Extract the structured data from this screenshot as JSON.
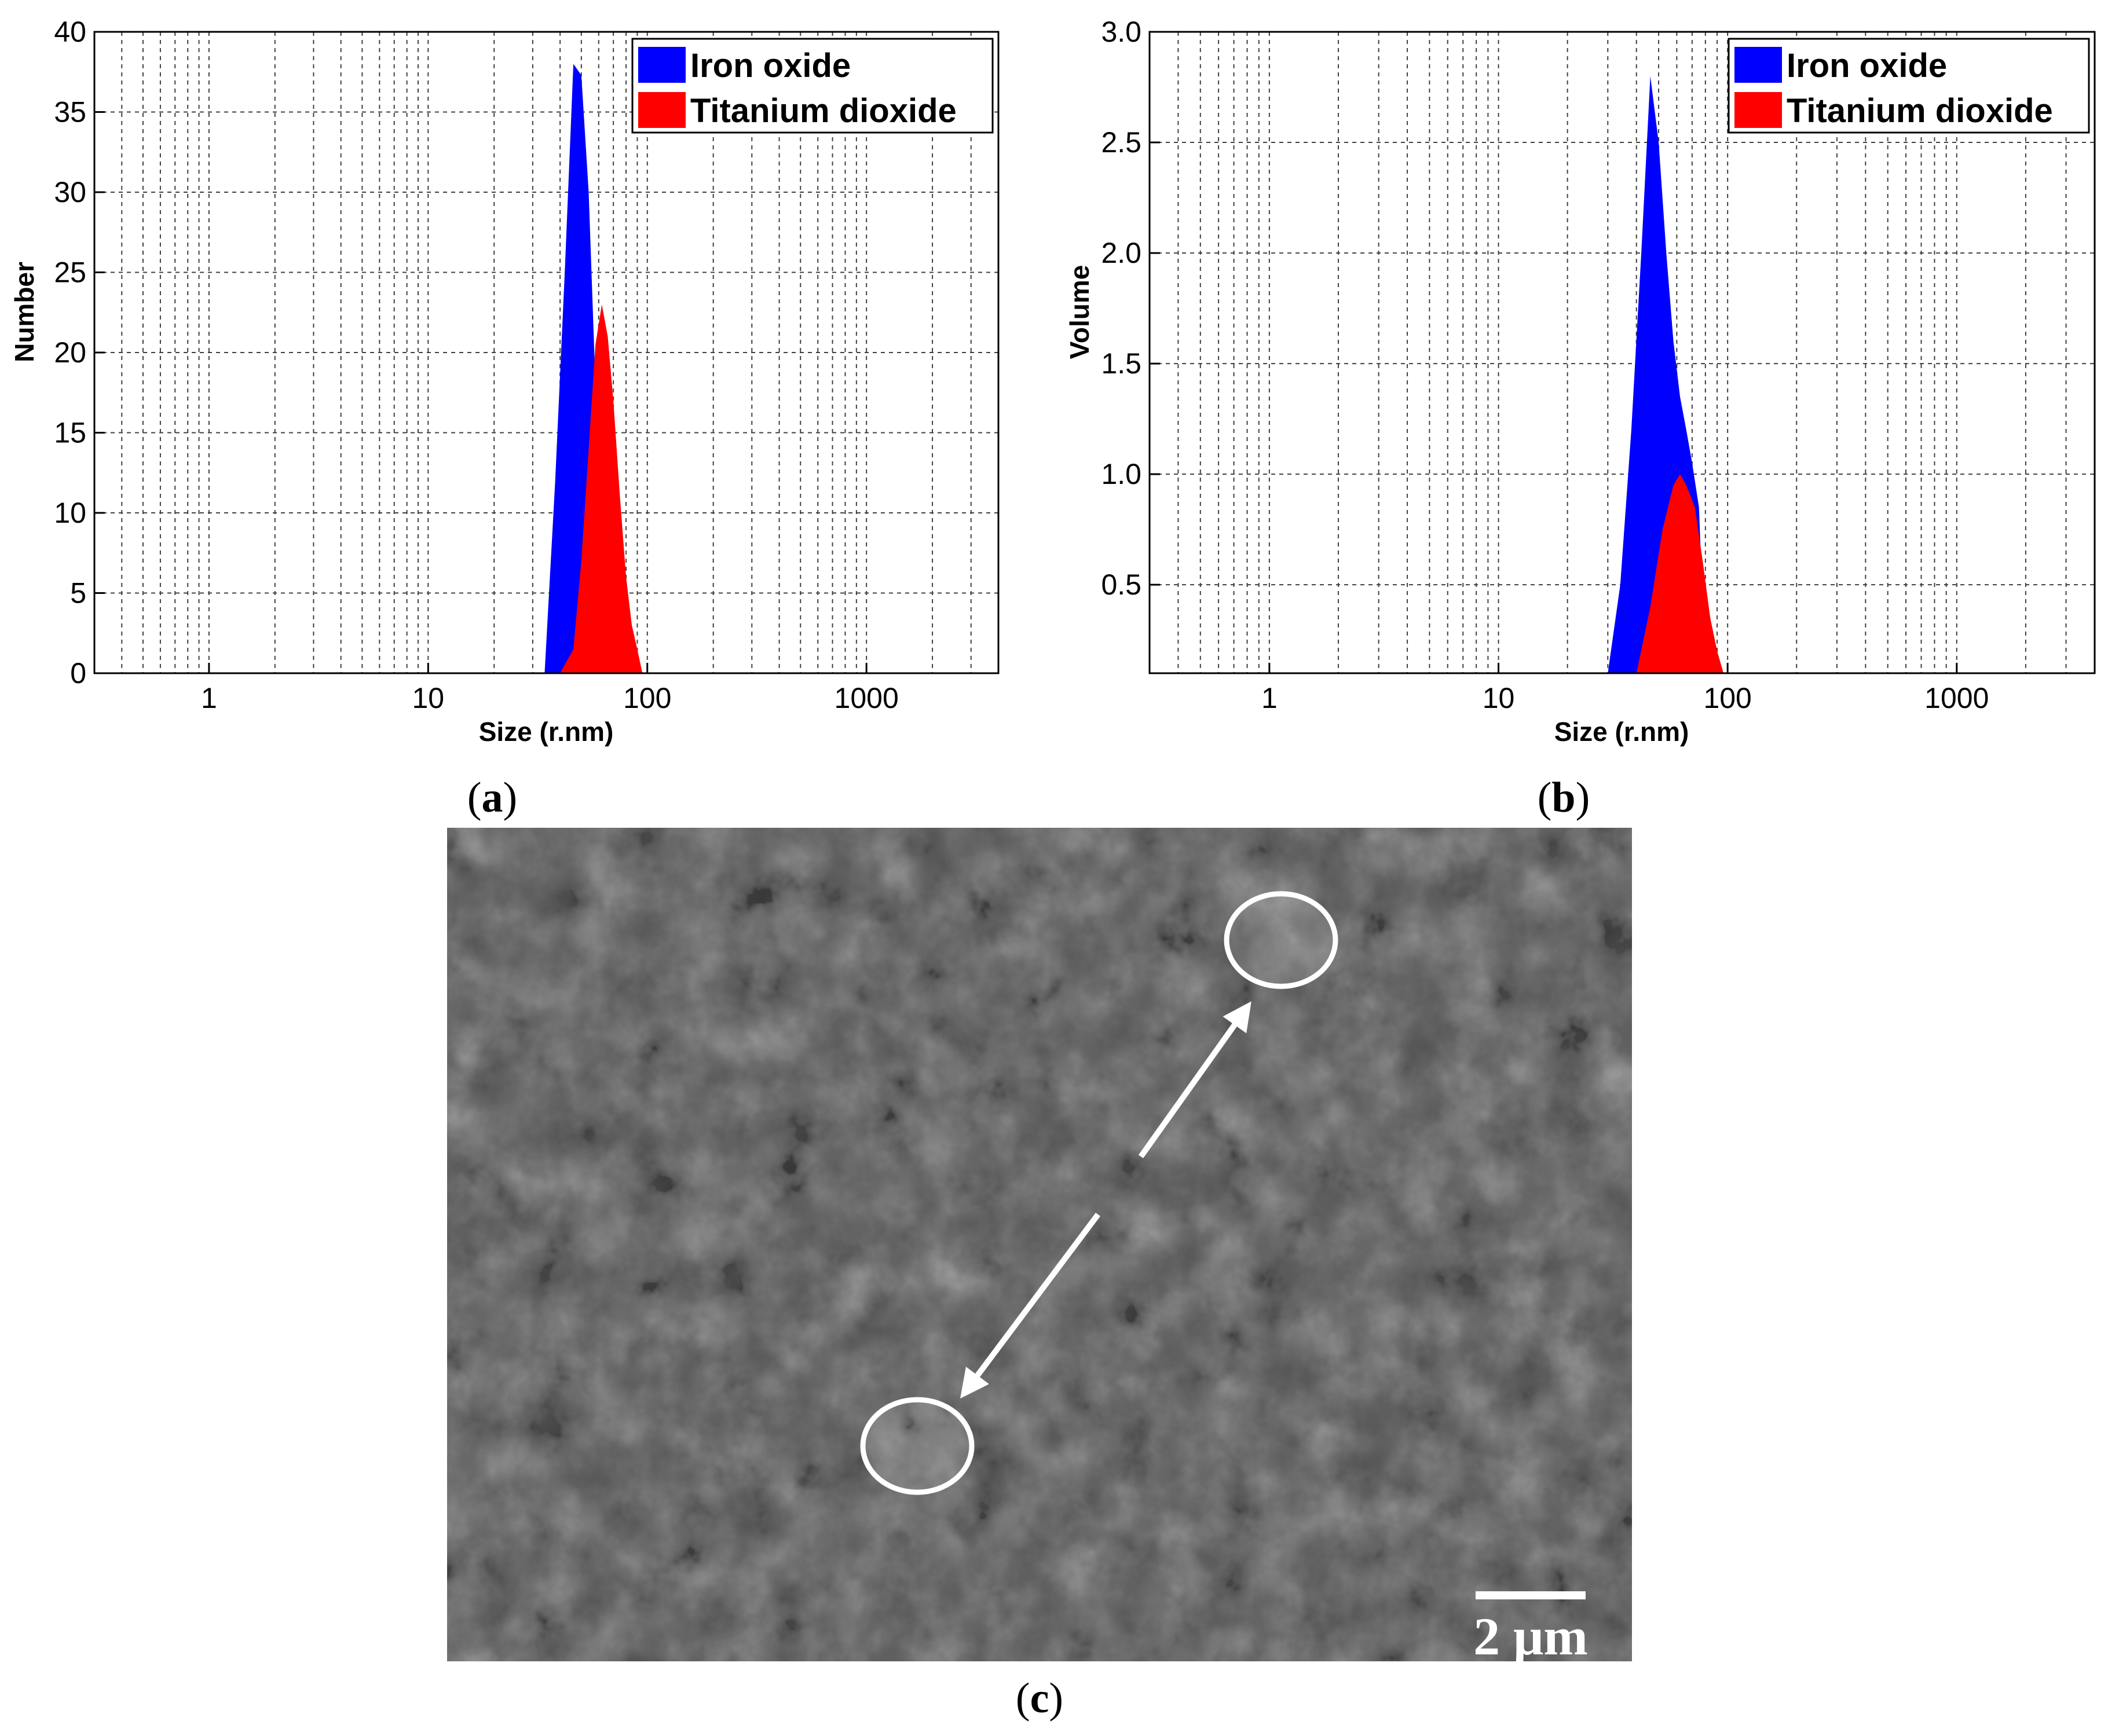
{
  "colors": {
    "iron_oxide": "#0000FF",
    "titanium_dioxide": "#FF0000",
    "sem_background": "#4b4b4b",
    "annotation": "#ffffff"
  },
  "chart_data": [
    {
      "type": "area",
      "panel_label": "a",
      "xlabel": "Size (r.nm)",
      "ylabel": "Number",
      "xscale": "log",
      "xlim": [
        0.3,
        4000
      ],
      "ylim": [
        0,
        40
      ],
      "xticks": [
        1,
        10,
        100,
        1000
      ],
      "yticks": [
        0,
        5,
        10,
        15,
        20,
        25,
        30,
        35,
        40
      ],
      "grid": true,
      "legend": "top-right",
      "series": [
        {
          "name": "Iron oxide",
          "color": "#0000FF",
          "x": [
            34,
            38,
            42,
            46,
            50,
            54,
            58,
            62,
            66,
            70
          ],
          "y": [
            0,
            12,
            25,
            38,
            37.3,
            30,
            18,
            8,
            2,
            0
          ]
        },
        {
          "name": "Titanium dioxide",
          "color": "#FF0000",
          "x": [
            40,
            46,
            50,
            54,
            58,
            62,
            66,
            70,
            75,
            80,
            85,
            90,
            95
          ],
          "y": [
            0,
            1.5,
            7,
            14,
            20.5,
            23,
            21,
            17,
            11,
            6,
            3,
            1.5,
            0
          ]
        }
      ]
    },
    {
      "type": "area",
      "panel_label": "b",
      "xlabel": "Size (r.nm)",
      "ylabel": "Volume",
      "xscale": "log",
      "xlim": [
        0.3,
        4000
      ],
      "ylim": [
        0.1,
        3.0
      ],
      "xticks": [
        1,
        10,
        100,
        1000
      ],
      "yticks": [
        0.5,
        1.0,
        1.5,
        2.0,
        2.5,
        3.0
      ],
      "ytick_labels": [
        "0.5",
        "1.0",
        "1.5",
        "2.0",
        "2.5",
        "3.0"
      ],
      "grid": true,
      "legend": "top-right",
      "series": [
        {
          "name": "Iron oxide",
          "color": "#0000FF",
          "x": [
            30,
            34,
            38,
            42,
            46,
            50,
            54,
            58,
            62,
            66,
            70,
            75,
            80
          ],
          "y": [
            0.1,
            0.5,
            1.2,
            2.0,
            2.8,
            2.5,
            2.0,
            1.6,
            1.35,
            1.2,
            1.05,
            0.85,
            0.1
          ]
        },
        {
          "name": "Titanium dioxide",
          "color": "#FF0000",
          "x": [
            40,
            46,
            52,
            58,
            62,
            66,
            72,
            78,
            84,
            90,
            96
          ],
          "y": [
            0.1,
            0.4,
            0.75,
            0.95,
            1.0,
            0.95,
            0.85,
            0.6,
            0.35,
            0.2,
            0.1
          ]
        }
      ]
    }
  ],
  "micrograph": {
    "panel_label": "c",
    "scale_bar_label": "2 μm",
    "annotation": "two circled particles with arrows"
  }
}
